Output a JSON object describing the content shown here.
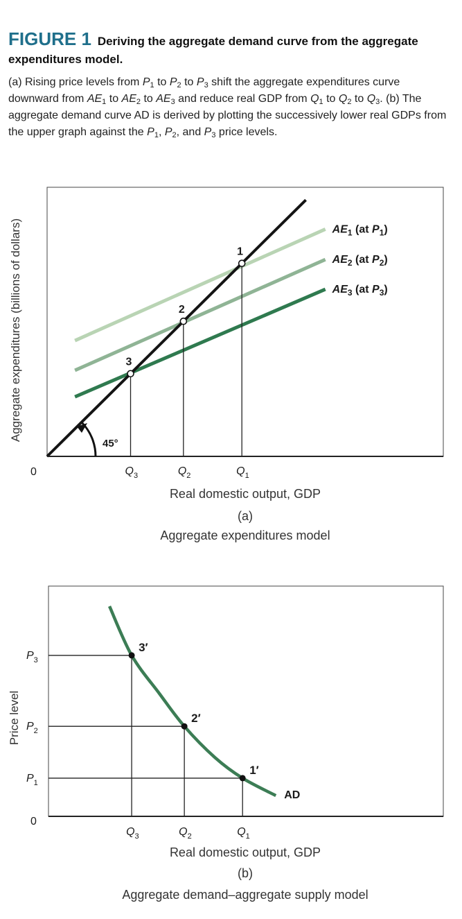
{
  "figure": {
    "number": "FIGURE 1",
    "title": "Deriving the aggregate demand curve from the aggregate expenditures model.",
    "caption": [
      {
        "t": "(a) Rising price levels from "
      },
      {
        "t": "P",
        "i": true
      },
      {
        "t": "1",
        "sub": true
      },
      {
        "t": " to "
      },
      {
        "t": "P",
        "i": true
      },
      {
        "t": "2",
        "sub": true
      },
      {
        "t": " to "
      },
      {
        "t": "P",
        "i": true
      },
      {
        "t": "3",
        "sub": true
      },
      {
        "t": " shift the aggregate expenditures curve downward from "
      },
      {
        "t": "AE",
        "i": true
      },
      {
        "t": "1",
        "sub": true
      },
      {
        "t": " to "
      },
      {
        "t": "AE",
        "i": true
      },
      {
        "t": "2",
        "sub": true
      },
      {
        "t": " to "
      },
      {
        "t": "AE",
        "i": true
      },
      {
        "t": "3",
        "sub": true
      },
      {
        "t": " and reduce real GDP from "
      },
      {
        "t": "Q",
        "i": true
      },
      {
        "t": "1",
        "sub": true
      },
      {
        "t": " to "
      },
      {
        "t": "Q",
        "i": true
      },
      {
        "t": "2",
        "sub": true
      },
      {
        "t": " to "
      },
      {
        "t": "Q",
        "i": true
      },
      {
        "t": "3",
        "sub": true
      },
      {
        "t": ". (b) The aggregate demand curve AD is derived by plotting the successively lower real GDPs from the upper graph against the "
      },
      {
        "t": "P",
        "i": true
      },
      {
        "t": "1",
        "sub": true
      },
      {
        "t": ", "
      },
      {
        "t": "P",
        "i": true
      },
      {
        "t": "2",
        "sub": true
      },
      {
        "t": ", and "
      },
      {
        "t": "P",
        "i": true
      },
      {
        "t": "3",
        "sub": true
      },
      {
        "t": " price levels."
      }
    ]
  },
  "colors": {
    "ae1": "#b9d4b4",
    "ae2": "#8fb495",
    "ae3": "#2f7a4f",
    "ad": "#3c7d55",
    "title": "#1f6f8b",
    "line45": "#141414"
  },
  "chart_data": [
    {
      "type": "line",
      "panel": "(a)",
      "subtitle": "Aggregate expenditures model",
      "xlabel": "Real domestic output, GDP",
      "ylabel": "Aggregate expenditures (billions of dollars)",
      "origin_label": "0",
      "angle_label": "45°",
      "x_ticks": [
        {
          "label": "Q",
          "sub": "3",
          "x": 150
        },
        {
          "label": "Q",
          "sub": "2",
          "x": 245
        },
        {
          "label": "Q",
          "sub": "1",
          "x": 350
        }
      ],
      "xlim": [
        0,
        712
      ],
      "ylim": [
        0,
        488
      ],
      "series": [
        {
          "name": "45° line",
          "x": [
            0,
            465
          ],
          "y": [
            0,
            465
          ]
        },
        {
          "name": "AE1 (at P1)",
          "label": "AE",
          "sub": "1",
          "ptext": "P",
          "psub": "1",
          "x": [
            50,
            500
          ],
          "y": [
            210,
            412
          ]
        },
        {
          "name": "AE2 (at P2)",
          "label": "AE",
          "sub": "2",
          "ptext": "P",
          "psub": "2",
          "x": [
            50,
            500
          ],
          "y": [
            156,
            357
          ]
        },
        {
          "name": "AE3 (at P3)",
          "label": "AE",
          "sub": "3",
          "ptext": "P",
          "psub": "3",
          "x": [
            50,
            500
          ],
          "y": [
            108,
            303
          ]
        }
      ],
      "equilibria": [
        {
          "label": "1",
          "x": 350,
          "y": 350
        },
        {
          "label": "2",
          "x": 245,
          "y": 245
        },
        {
          "label": "3",
          "x": 150,
          "y": 150
        }
      ]
    },
    {
      "type": "line",
      "panel": "(b)",
      "subtitle": "Aggregate demand–aggregate supply model",
      "xlabel": "Real domestic output, GDP",
      "ylabel": "Price level",
      "origin_label": "0",
      "x_ticks": [
        {
          "label": "Q",
          "sub": "3",
          "x": 150
        },
        {
          "label": "Q",
          "sub": "2",
          "x": 245
        },
        {
          "label": "Q",
          "sub": "1",
          "x": 350
        }
      ],
      "y_ticks": [
        {
          "label": "P",
          "sub": "1",
          "y": 70
        },
        {
          "label": "P",
          "sub": "2",
          "y": 165
        },
        {
          "label": "P",
          "sub": "3",
          "y": 295
        }
      ],
      "xlim": [
        0,
        712
      ],
      "ylim": [
        0,
        422
      ],
      "series": [
        {
          "name": "AD",
          "label": "AD",
          "x": [
            110,
            150,
            200,
            245,
            300,
            350,
            410
          ],
          "y": [
            385,
            295,
            225,
            165,
            108,
            70,
            38
          ]
        }
      ],
      "points": [
        {
          "label": "1′",
          "x": 350,
          "y": 70
        },
        {
          "label": "2′",
          "x": 245,
          "y": 165
        },
        {
          "label": "3′",
          "x": 150,
          "y": 295
        }
      ]
    }
  ]
}
